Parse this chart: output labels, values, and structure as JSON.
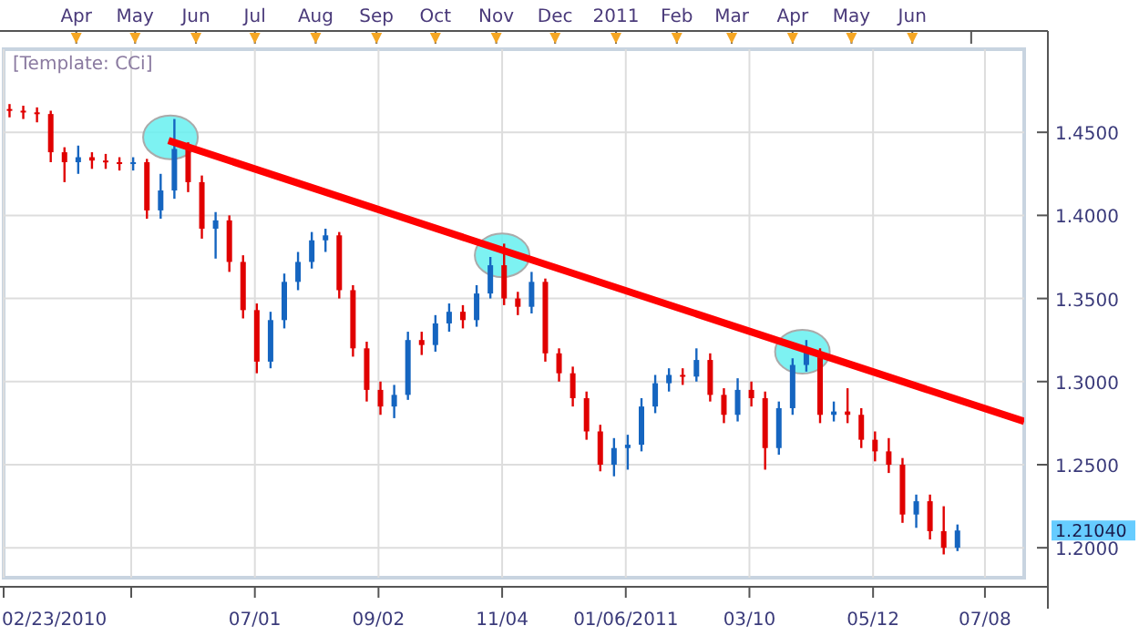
{
  "chart_data": {
    "type": "candlestick",
    "xlim": [
      "2010-02-23",
      "2011-07-28"
    ],
    "xticks": [
      {
        "value": "2010-02-23",
        "label": "02/23/2010"
      },
      {
        "value": "2010-04-29",
        "label": null
      },
      {
        "value": "2010-07-01",
        "label": "07/01"
      },
      {
        "value": "2010-09-02",
        "label": "09/02"
      },
      {
        "value": "2010-11-04",
        "label": "11/04"
      },
      {
        "value": "2011-01-06",
        "label": "01/06/2011"
      },
      {
        "value": "2011-03-10",
        "label": "03/10"
      },
      {
        "value": "2011-05-12",
        "label": "05/12"
      },
      {
        "value": "2011-07-08",
        "label": "07/08"
      }
    ],
    "x2lim": [
      "2010-02-23",
      "2011-07-28"
    ],
    "x2ticks": [
      {
        "value": "2010-04-01",
        "label": "Apr"
      },
      {
        "value": "2010-05-01",
        "label": "May"
      },
      {
        "value": "2010-06-01",
        "label": "Jun"
      },
      {
        "value": "2010-07-01",
        "label": "Jul"
      },
      {
        "value": "2010-08-01",
        "label": "Aug"
      },
      {
        "value": "2010-09-01",
        "label": "Sep"
      },
      {
        "value": "2010-10-01",
        "label": "Oct"
      },
      {
        "value": "2010-11-01",
        "label": "Nov"
      },
      {
        "value": "2010-12-01",
        "label": "Dec"
      },
      {
        "value": "2011-01-01",
        "label": "2011"
      },
      {
        "value": "2011-02-01",
        "label": "Feb"
      },
      {
        "value": "2011-03-01",
        "label": "Mar"
      },
      {
        "value": "2011-04-01",
        "label": "Apr"
      },
      {
        "value": "2011-05-01",
        "label": "May"
      },
      {
        "value": "2011-06-01",
        "label": "Jun"
      },
      {
        "value": "2011-07-01",
        "label": null
      }
    ],
    "ylim": [
      1.182,
      1.5
    ],
    "yticks": [
      {
        "value": 1.2,
        "label": "1.2000"
      },
      {
        "value": 1.25,
        "label": "1.2500"
      },
      {
        "value": 1.3,
        "label": "1.3000"
      },
      {
        "value": 1.35,
        "label": "1.3500"
      },
      {
        "value": 1.4,
        "label": "1.4000"
      },
      {
        "value": 1.45,
        "label": "1.4500"
      }
    ],
    "grid": true,
    "annotations": [
      "[Template: CCi]",
      "1.21040"
    ],
    "series": [
      {
        "x": [
          "2010-02-26",
          "2010-03-05",
          "2010-03-12",
          "2010-03-19",
          "2010-03-26",
          "2010-04-02",
          "2010-04-09",
          "2010-04-16",
          "2010-04-23",
          "2010-04-30",
          "2010-05-07",
          "2010-05-14",
          "2010-05-21",
          "2010-05-28",
          "2010-06-04",
          "2010-06-11",
          "2010-06-18",
          "2010-06-25",
          "2010-07-02",
          "2010-07-09",
          "2010-07-16",
          "2010-07-23",
          "2010-07-30",
          "2010-08-06",
          "2010-08-13",
          "2010-08-20",
          "2010-08-27",
          "2010-09-03",
          "2010-09-10",
          "2010-09-17",
          "2010-09-24",
          "2010-10-01",
          "2010-10-08",
          "2010-10-15",
          "2010-10-22",
          "2010-10-29",
          "2010-11-05",
          "2010-11-12",
          "2010-11-19",
          "2010-11-26",
          "2010-12-03",
          "2010-12-10",
          "2010-12-17",
          "2010-12-24",
          "2010-12-31",
          "2011-01-07",
          "2011-01-14",
          "2011-01-21",
          "2011-01-28",
          "2011-02-04",
          "2011-02-11",
          "2011-02-18",
          "2011-02-25",
          "2011-03-04",
          "2011-03-11",
          "2011-03-18",
          "2011-03-25",
          "2011-04-01",
          "2011-04-08",
          "2011-04-15",
          "2011-04-22",
          "2011-04-29",
          "2011-05-06",
          "2011-05-13",
          "2011-05-20",
          "2011-05-27",
          "2011-06-03",
          "2011-06-10",
          "2011-06-17",
          "2011-06-24"
        ],
        "ohlc": [
          [
            1.464,
            1.467,
            1.459,
            1.463
          ],
          [
            1.463,
            1.466,
            1.458,
            1.462
          ],
          [
            1.462,
            1.465,
            1.456,
            1.461
          ],
          [
            1.461,
            1.463,
            1.432,
            1.438
          ],
          [
            1.438,
            1.441,
            1.42,
            1.432
          ],
          [
            1.432,
            1.442,
            1.425,
            1.435
          ],
          [
            1.435,
            1.438,
            1.428,
            1.433
          ],
          [
            1.433,
            1.437,
            1.428,
            1.432
          ],
          [
            1.432,
            1.435,
            1.427,
            1.431
          ],
          [
            1.431,
            1.435,
            1.427,
            1.432
          ],
          [
            1.432,
            1.434,
            1.398,
            1.403
          ],
          [
            1.403,
            1.425,
            1.398,
            1.415
          ],
          [
            1.415,
            1.458,
            1.41,
            1.44
          ],
          [
            1.44,
            1.444,
            1.414,
            1.42
          ],
          [
            1.42,
            1.424,
            1.386,
            1.392
          ],
          [
            1.392,
            1.402,
            1.374,
            1.397
          ],
          [
            1.397,
            1.4,
            1.366,
            1.372
          ],
          [
            1.372,
            1.376,
            1.338,
            1.343
          ],
          [
            1.343,
            1.347,
            1.305,
            1.312
          ],
          [
            1.312,
            1.342,
            1.308,
            1.337
          ],
          [
            1.337,
            1.365,
            1.332,
            1.36
          ],
          [
            1.36,
            1.378,
            1.355,
            1.372
          ],
          [
            1.372,
            1.39,
            1.368,
            1.385
          ],
          [
            1.385,
            1.392,
            1.378,
            1.388
          ],
          [
            1.388,
            1.39,
            1.35,
            1.355
          ],
          [
            1.355,
            1.358,
            1.315,
            1.32
          ],
          [
            1.32,
            1.324,
            1.288,
            1.295
          ],
          [
            1.295,
            1.3,
            1.28,
            1.285
          ],
          [
            1.285,
            1.298,
            1.278,
            1.292
          ],
          [
            1.292,
            1.33,
            1.289,
            1.325
          ],
          [
            1.325,
            1.33,
            1.316,
            1.322
          ],
          [
            1.322,
            1.34,
            1.318,
            1.335
          ],
          [
            1.335,
            1.347,
            1.33,
            1.342
          ],
          [
            1.342,
            1.346,
            1.332,
            1.337
          ],
          [
            1.337,
            1.358,
            1.333,
            1.353
          ],
          [
            1.353,
            1.375,
            1.35,
            1.37
          ],
          [
            1.37,
            1.383,
            1.346,
            1.35
          ],
          [
            1.35,
            1.354,
            1.34,
            1.345
          ],
          [
            1.345,
            1.366,
            1.341,
            1.36
          ],
          [
            1.36,
            1.362,
            1.312,
            1.317
          ],
          [
            1.317,
            1.32,
            1.3,
            1.305
          ],
          [
            1.305,
            1.309,
            1.285,
            1.29
          ],
          [
            1.29,
            1.294,
            1.265,
            1.27
          ],
          [
            1.27,
            1.274,
            1.246,
            1.25
          ],
          [
            1.25,
            1.266,
            1.243,
            1.26
          ],
          [
            1.26,
            1.268,
            1.247,
            1.262
          ],
          [
            1.262,
            1.29,
            1.258,
            1.285
          ],
          [
            1.285,
            1.304,
            1.281,
            1.299
          ],
          [
            1.299,
            1.308,
            1.294,
            1.304
          ],
          [
            1.304,
            1.308,
            1.298,
            1.303
          ],
          [
            1.303,
            1.32,
            1.3,
            1.313
          ],
          [
            1.313,
            1.317,
            1.288,
            1.292
          ],
          [
            1.292,
            1.296,
            1.275,
            1.28
          ],
          [
            1.28,
            1.302,
            1.276,
            1.295
          ],
          [
            1.295,
            1.3,
            1.285,
            1.29
          ],
          [
            1.29,
            1.294,
            1.247,
            1.26
          ],
          [
            1.26,
            1.288,
            1.256,
            1.284
          ],
          [
            1.284,
            1.314,
            1.28,
            1.31
          ],
          [
            1.31,
            1.325,
            1.306,
            1.318
          ],
          [
            1.318,
            1.32,
            1.275,
            1.28
          ],
          [
            1.28,
            1.288,
            1.276,
            1.282
          ],
          [
            1.282,
            1.296,
            1.275,
            1.28
          ],
          [
            1.28,
            1.284,
            1.26,
            1.265
          ],
          [
            1.265,
            1.27,
            1.252,
            1.258
          ],
          [
            1.258,
            1.266,
            1.245,
            1.25
          ],
          [
            1.25,
            1.254,
            1.215,
            1.22
          ],
          [
            1.22,
            1.232,
            1.212,
            1.228
          ],
          [
            1.228,
            1.232,
            1.205,
            1.21
          ],
          [
            1.21,
            1.225,
            1.196,
            1.2
          ],
          [
            1.2,
            1.214,
            1.198,
            1.2104
          ]
        ],
        "colors": [
          "#e00000",
          "#e00000",
          "#e00000",
          "#e00000",
          "#e00000",
          "#1565c0",
          "#e00000",
          "#e00000",
          "#e00000",
          "#1565c0",
          "#e00000",
          "#1565c0",
          "#1565c0",
          "#e00000",
          "#e00000",
          "#1565c0",
          "#e00000",
          "#e00000",
          "#e00000",
          "#1565c0",
          "#1565c0",
          "#1565c0",
          "#1565c0",
          "#1565c0",
          "#e00000",
          "#e00000",
          "#e00000",
          "#e00000",
          "#1565c0",
          "#1565c0",
          "#e00000",
          "#1565c0",
          "#1565c0",
          "#e00000",
          "#1565c0",
          "#1565c0",
          "#e00000",
          "#e00000",
          "#1565c0",
          "#e00000",
          "#e00000",
          "#e00000",
          "#e00000",
          "#e00000",
          "#1565c0",
          "#1565c0",
          "#1565c0",
          "#1565c0",
          "#1565c0",
          "#e00000",
          "#1565c0",
          "#e00000",
          "#e00000",
          "#1565c0",
          "#e00000",
          "#e00000",
          "#1565c0",
          "#1565c0",
          "#1565c0",
          "#e00000",
          "#1565c0",
          "#e00000",
          "#e00000",
          "#e00000",
          "#e00000",
          "#e00000",
          "#1565c0",
          "#e00000",
          "#e00000",
          "#1565c0"
        ]
      },
      {
        "type": "scatter",
        "marker": "circle",
        "color": "#66f0f0",
        "x": [
          "2010-05-19",
          "2010-11-04",
          "2011-04-06"
        ],
        "values": [
          1.447,
          1.376,
          1.318
        ]
      },
      {
        "type": "line",
        "color": "#ff0000",
        "x": [
          "2010-05-18",
          "2011-07-28"
        ],
        "values": [
          1.445,
          1.276
        ]
      }
    ]
  }
}
